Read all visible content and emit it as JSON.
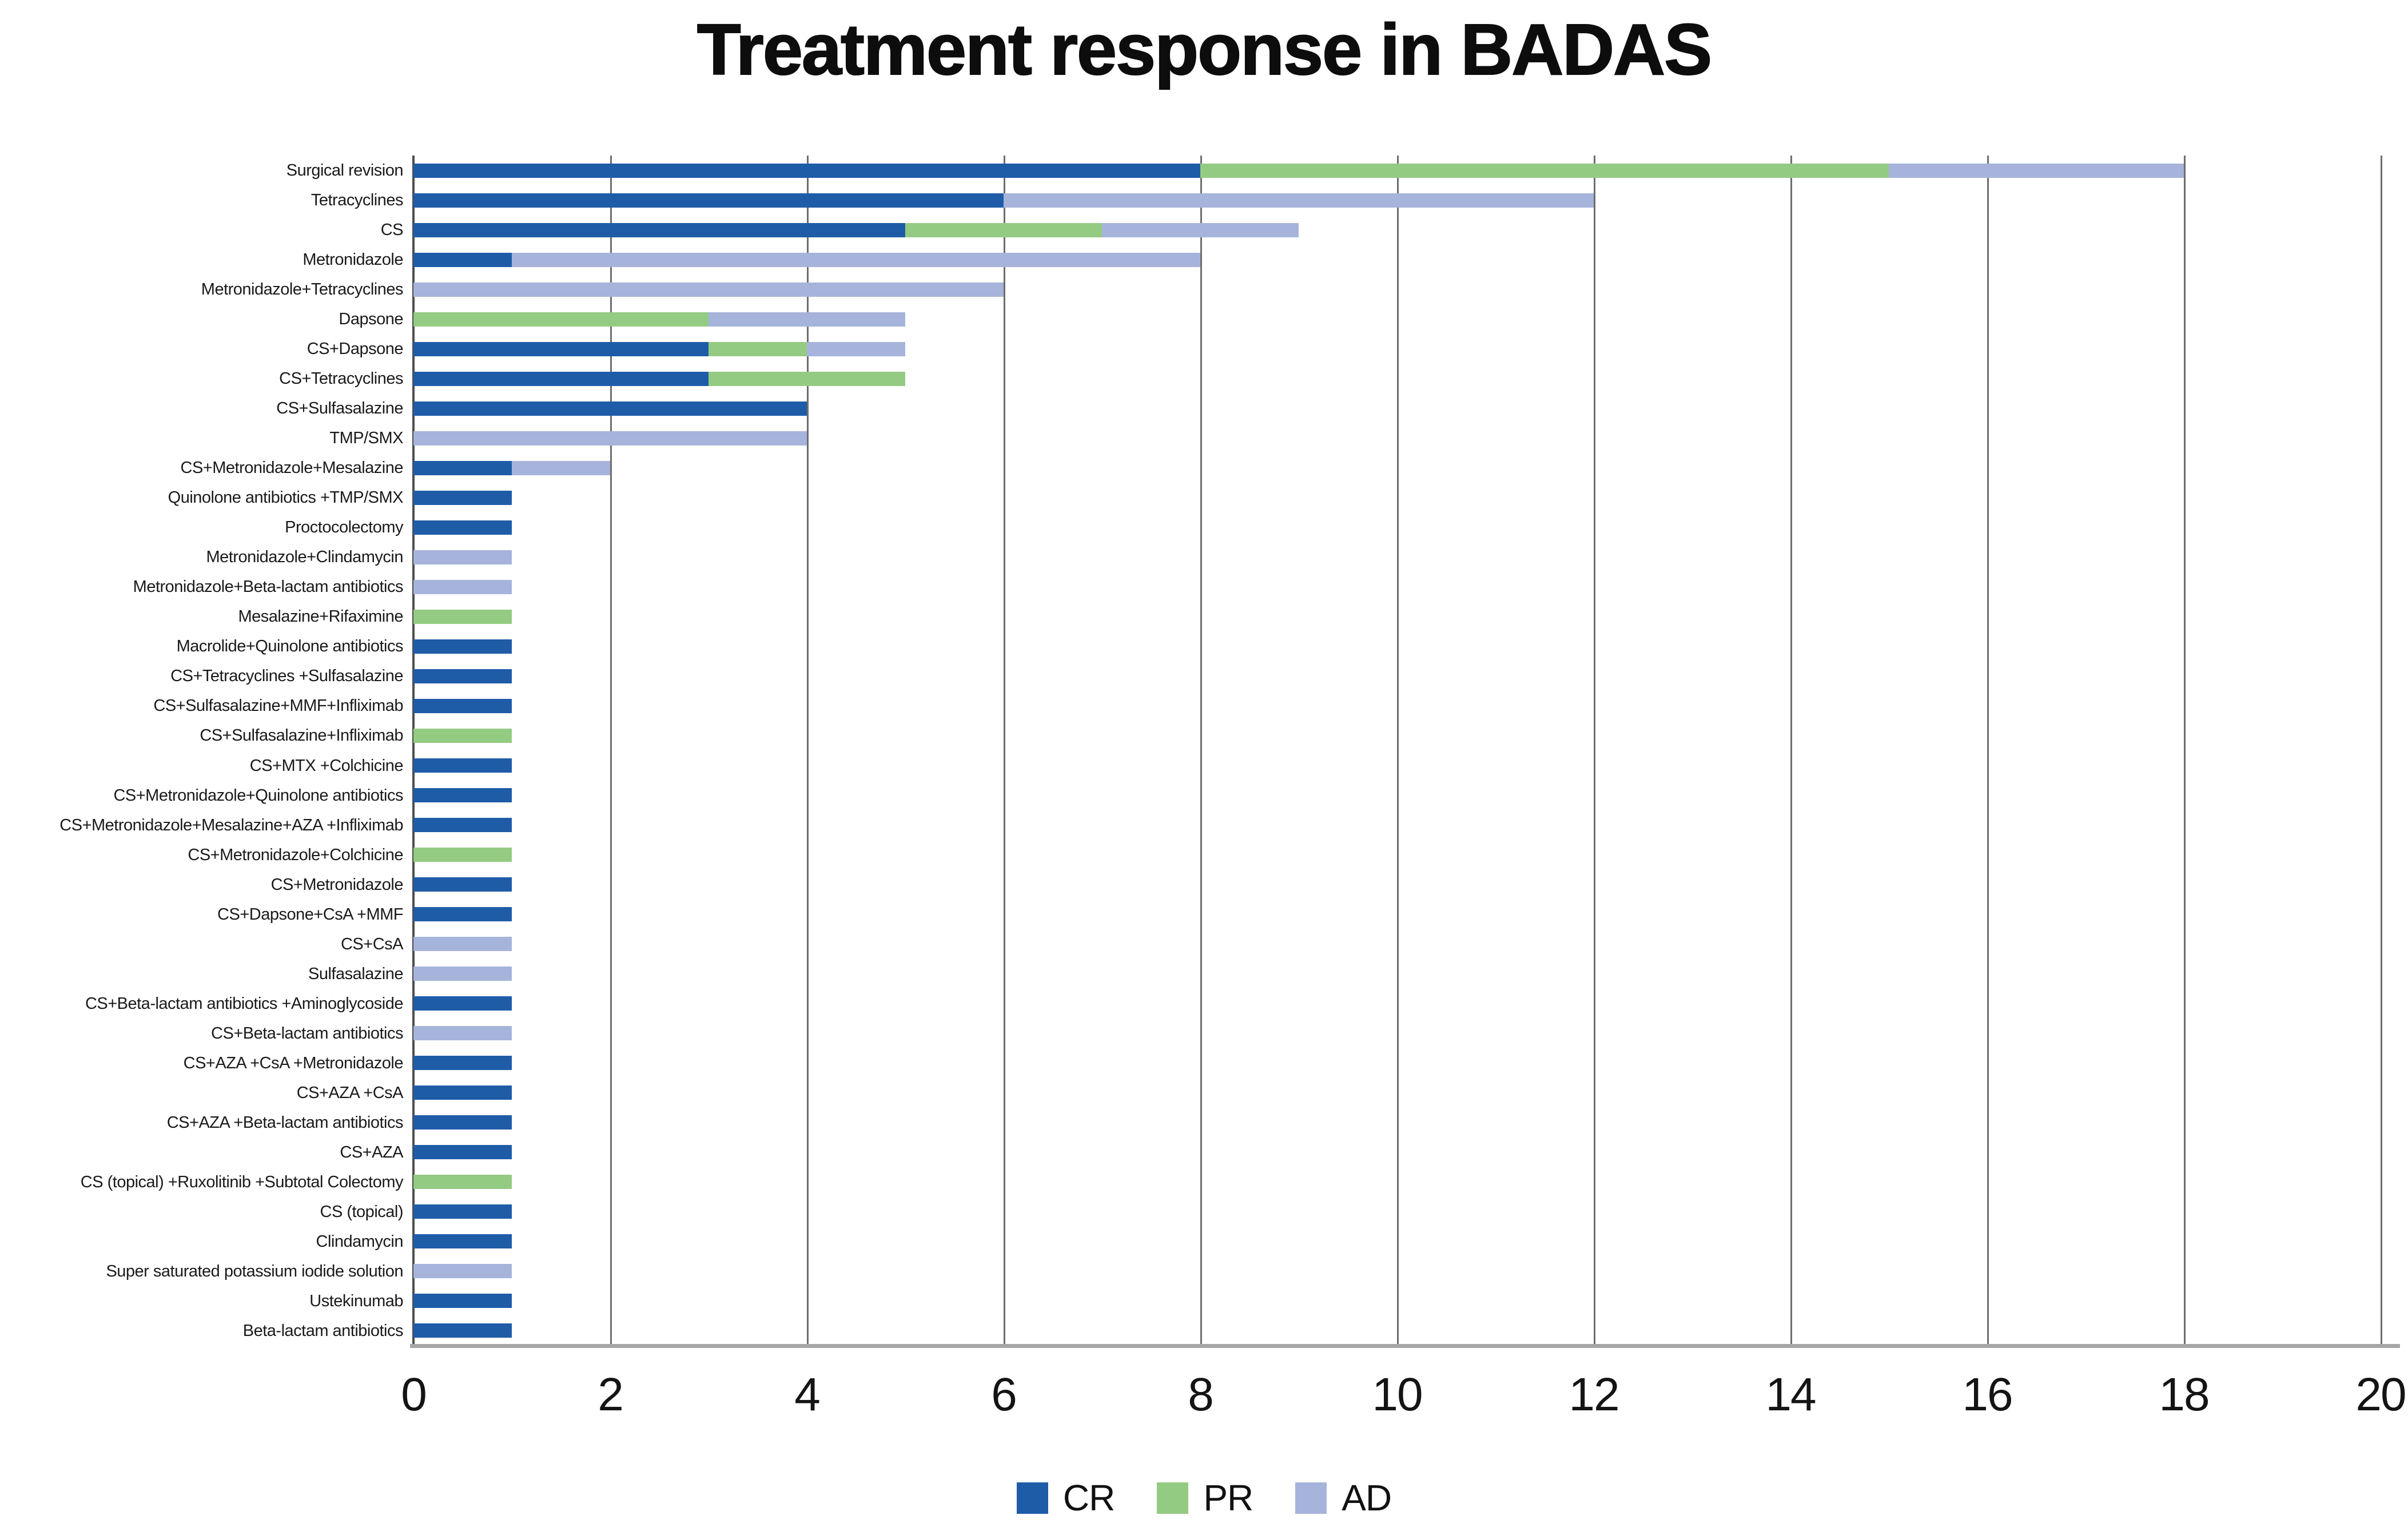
{
  "title": "Treatment response in BADAS",
  "chart_data": {
    "type": "bar",
    "orientation": "horizontal",
    "stacked": true,
    "title": "Treatment response in BADAS",
    "xlabel": "",
    "ylabel": "",
    "xlim": [
      0,
      20
    ],
    "xticks": [
      0,
      2,
      4,
      6,
      8,
      10,
      12,
      14,
      16,
      18,
      20
    ],
    "grid": true,
    "legend_position": "bottom",
    "categories": [
      "Surgical revision",
      "Tetracyclines",
      "CS",
      "Metronidazole",
      "Metronidazole+Tetracyclines",
      "Dapsone",
      "CS+Dapsone",
      "CS+Tetracyclines",
      "CS+Sulfasalazine",
      "TMP/SMX",
      "CS+Metronidazole+Mesalazine",
      "Quinolone antibiotics +TMP/SMX",
      "Proctocolectomy",
      "Metronidazole+Clindamycin",
      "Metronidazole+Beta-lactam antibiotics",
      "Mesalazine+Rifaximine",
      "Macrolide+Quinolone antibiotics",
      "CS+Tetracyclines +Sulfasalazine",
      "CS+Sulfasalazine+MMF+Infliximab",
      "CS+Sulfasalazine+Infliximab",
      "CS+MTX +Colchicine",
      "CS+Metronidazole+Quinolone antibiotics",
      "CS+Metronidazole+Mesalazine+AZA +Infliximab",
      "CS+Metronidazole+Colchicine",
      "CS+Metronidazole",
      "CS+Dapsone+CsA +MMF",
      "CS+CsA",
      "Sulfasalazine",
      "CS+Beta-lactam antibiotics +Aminoglycoside",
      "CS+Beta-lactam antibiotics",
      "CS+AZA +CsA +Metronidazole",
      "CS+AZA +CsA",
      "CS+AZA +Beta-lactam antibiotics",
      "CS+AZA",
      "CS (topical) +Ruxolitinib +Subtotal Colectomy",
      "CS (topical)",
      "Clindamycin",
      "Super saturated potassium iodide solution",
      "Ustekinumab",
      "Beta-lactam antibiotics"
    ],
    "series": [
      {
        "name": "CR",
        "color": "#1F5CA8",
        "values": [
          8,
          6,
          5,
          1,
          0,
          0,
          3,
          3,
          4,
          0,
          1,
          1,
          1,
          0,
          0,
          0,
          1,
          1,
          1,
          0,
          1,
          1,
          1,
          0,
          1,
          1,
          0,
          0,
          1,
          0,
          1,
          1,
          1,
          1,
          0,
          1,
          1,
          0,
          1,
          1
        ]
      },
      {
        "name": "PR",
        "color": "#94CB82",
        "values": [
          7,
          0,
          2,
          0,
          0,
          3,
          1,
          2,
          0,
          0,
          0,
          0,
          0,
          0,
          0,
          1,
          0,
          0,
          0,
          1,
          0,
          0,
          0,
          1,
          0,
          0,
          0,
          0,
          0,
          0,
          0,
          0,
          0,
          0,
          1,
          0,
          0,
          0,
          0,
          0
        ]
      },
      {
        "name": "AD",
        "color": "#A6B4DB",
        "values": [
          3,
          6,
          2,
          7,
          6,
          2,
          1,
          0,
          0,
          4,
          1,
          0,
          0,
          1,
          1,
          0,
          0,
          0,
          0,
          0,
          0,
          0,
          0,
          0,
          0,
          0,
          1,
          1,
          0,
          1,
          0,
          0,
          0,
          0,
          0,
          0,
          0,
          1,
          0,
          0
        ]
      }
    ]
  },
  "legend": {
    "items": [
      {
        "label": "CR",
        "color": "#1F5CA8"
      },
      {
        "label": "PR",
        "color": "#94CB82"
      },
      {
        "label": "AD",
        "color": "#A6B4DB"
      }
    ]
  },
  "colors": {
    "gridline": "#6E6E6E",
    "zero_axis": "#4D4D4D",
    "baseline": "#A6A6A6",
    "background": "#FFFFFF"
  }
}
